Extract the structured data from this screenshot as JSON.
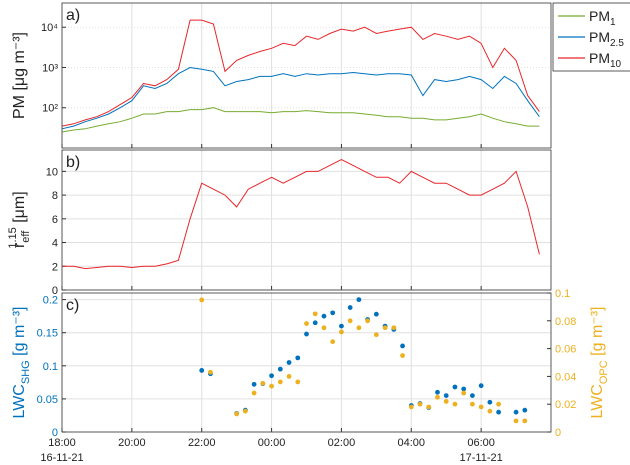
{
  "chart_data": [
    {
      "type": "line",
      "panel_label": "a)",
      "log_scale": true,
      "ylabel": {
        "base": "PM [μg m⁻³]"
      },
      "xlim": [
        "16-11-21 18:00",
        "17-11-21 08:00"
      ],
      "xticks": [
        "16-11-21 18:00",
        "16-11-21 20:00",
        "16-11-21 22:00",
        "17-11-21 00:00",
        "17-11-21 02:00",
        "17-11-21 04:00",
        "17-11-21 06:00"
      ],
      "ylim": [
        10,
        40000
      ],
      "yticks": [
        {
          "value": 100,
          "label": "10²"
        },
        {
          "value": 1000,
          "label": "10³"
        },
        {
          "value": 10000,
          "label": "10⁴"
        }
      ],
      "grid": true,
      "legend": "outside-top-right",
      "x": [
        "16-11-21 18:00",
        "16-11-21 18:20",
        "16-11-21 18:40",
        "16-11-21 19:00",
        "16-11-21 19:20",
        "16-11-21 19:40",
        "16-11-21 20:00",
        "16-11-21 20:20",
        "16-11-21 20:40",
        "16-11-21 21:00",
        "16-11-21 21:20",
        "16-11-21 21:40",
        "16-11-21 22:00",
        "16-11-21 22:20",
        "16-11-21 22:40",
        "16-11-21 23:00",
        "16-11-21 23:20",
        "16-11-21 23:40",
        "17-11-21 00:00",
        "17-11-21 00:20",
        "17-11-21 00:40",
        "17-11-21 01:00",
        "17-11-21 01:20",
        "17-11-21 01:40",
        "17-11-21 02:00",
        "17-11-21 02:20",
        "17-11-21 02:40",
        "17-11-21 03:00",
        "17-11-21 03:20",
        "17-11-21 03:40",
        "17-11-21 04:00",
        "17-11-21 04:20",
        "17-11-21 04:40",
        "17-11-21 05:00",
        "17-11-21 05:20",
        "17-11-21 05:40",
        "17-11-21 06:00",
        "17-11-21 06:20",
        "17-11-21 06:40",
        "17-11-21 07:00",
        "17-11-21 07:20",
        "17-11-21 07:40"
      ],
      "series": [
        {
          "name": "PM",
          "subscript": "1",
          "color": "#77ac30",
          "values": [
            25,
            28,
            30,
            35,
            40,
            45,
            55,
            70,
            70,
            80,
            80,
            90,
            90,
            100,
            80,
            80,
            80,
            80,
            75,
            80,
            80,
            85,
            80,
            75,
            75,
            75,
            70,
            65,
            60,
            60,
            55,
            55,
            50,
            50,
            55,
            60,
            70,
            55,
            45,
            40,
            35,
            35
          ]
        },
        {
          "name": "PM",
          "subscript": "2.5",
          "color": "#0072bd",
          "values": [
            30,
            35,
            45,
            55,
            70,
            100,
            150,
            350,
            300,
            400,
            700,
            1000,
            900,
            800,
            350,
            450,
            500,
            600,
            600,
            700,
            600,
            700,
            650,
            700,
            700,
            750,
            700,
            650,
            700,
            700,
            650,
            200,
            500,
            450,
            500,
            600,
            500,
            300,
            600,
            400,
            150,
            60
          ]
        },
        {
          "name": "PM",
          "subscript": "10",
          "color": "#e8262a",
          "values": [
            35,
            40,
            50,
            60,
            80,
            120,
            180,
            400,
            350,
            500,
            900,
            15000,
            15000,
            12000,
            800,
            1500,
            2000,
            2500,
            3000,
            4000,
            3500,
            6000,
            5000,
            7000,
            9000,
            8000,
            10000,
            7000,
            8000,
            9000,
            10000,
            5000,
            7000,
            6000,
            5000,
            6000,
            4000,
            1000,
            3000,
            1500,
            200,
            80
          ]
        }
      ]
    },
    {
      "type": "line",
      "panel_label": "b)",
      "log_scale": false,
      "ylabel": {
        "base": "r",
        "sub": "eff",
        "sup": "1.15",
        "unit": " [μm]"
      },
      "xlim": [
        "16-11-21 18:00",
        "17-11-21 08:00"
      ],
      "xticks": [
        "16-11-21 18:00",
        "16-11-21 20:00",
        "16-11-21 22:00",
        "17-11-21 00:00",
        "17-11-21 02:00",
        "17-11-21 04:00",
        "17-11-21 06:00"
      ],
      "ylim": [
        0,
        11.8
      ],
      "yticks": [
        0,
        2,
        4,
        6,
        8,
        10
      ],
      "grid": true,
      "x": [
        "16-11-21 18:00",
        "16-11-21 18:20",
        "16-11-21 18:40",
        "16-11-21 19:00",
        "16-11-21 19:20",
        "16-11-21 19:40",
        "16-11-21 20:00",
        "16-11-21 20:20",
        "16-11-21 20:40",
        "16-11-21 21:00",
        "16-11-21 21:20",
        "16-11-21 21:40",
        "16-11-21 22:00",
        "16-11-21 22:20",
        "16-11-21 22:40",
        "16-11-21 23:00",
        "16-11-21 23:20",
        "16-11-21 23:40",
        "17-11-21 00:00",
        "17-11-21 00:20",
        "17-11-21 00:40",
        "17-11-21 01:00",
        "17-11-21 01:20",
        "17-11-21 01:40",
        "17-11-21 02:00",
        "17-11-21 02:20",
        "17-11-21 02:40",
        "17-11-21 03:00",
        "17-11-21 03:20",
        "17-11-21 03:40",
        "17-11-21 04:00",
        "17-11-21 04:20",
        "17-11-21 04:40",
        "17-11-21 05:00",
        "17-11-21 05:20",
        "17-11-21 05:40",
        "17-11-21 06:00",
        "17-11-21 06:20",
        "17-11-21 06:40",
        "17-11-21 07:00",
        "17-11-21 07:20",
        "17-11-21 07:40"
      ],
      "series": [
        {
          "color": "#e8262a",
          "values": [
            2,
            2,
            1.8,
            1.9,
            2,
            2,
            1.9,
            2,
            2,
            2.2,
            2.5,
            6,
            9,
            8.5,
            8,
            7,
            8.5,
            9,
            9.5,
            9,
            9.5,
            10,
            10,
            10.5,
            11,
            10.5,
            10,
            9.5,
            9.5,
            9,
            10,
            9.5,
            9,
            9,
            8.5,
            8,
            8,
            8.5,
            9,
            10,
            7,
            3
          ]
        }
      ]
    },
    {
      "type": "scatter",
      "panel_label": "c)",
      "log_scale": false,
      "ylabel": {
        "base": "LWC",
        "sub": "SHG",
        "unit": " [g m⁻³]"
      },
      "y2label": {
        "base": "LWC",
        "sub": "OPC",
        "unit": " [g m⁻³]"
      },
      "xlim": [
        "16-11-21 18:00",
        "17-11-21 08:00"
      ],
      "xticks": [
        {
          "value": "16-11-21 18:00",
          "label": "18:00"
        },
        {
          "value": "16-11-21 20:00",
          "label": "20:00"
        },
        {
          "value": "16-11-21 22:00",
          "label": "22:00"
        },
        {
          "value": "17-11-21 00:00",
          "label": "00:00"
        },
        {
          "value": "17-11-21 02:00",
          "label": "02:00"
        },
        {
          "value": "17-11-21 04:00",
          "label": "04:00"
        },
        {
          "value": "17-11-21 06:00",
          "label": "06:00"
        }
      ],
      "xdate_labels": [
        {
          "value": "16-11-21 18:00",
          "label": "16-11-21"
        },
        {
          "value": "17-11-21 06:00",
          "label": "17-11-21"
        }
      ],
      "ylim": [
        0,
        0.21
      ],
      "yticks": [
        0,
        0.05,
        0.1,
        0.15,
        0.2
      ],
      "y2lim": [
        0,
        0.1
      ],
      "y2ticks": [
        0,
        0.02,
        0.04,
        0.06,
        0.08,
        0.1
      ],
      "grid": true,
      "x": [
        "16-11-21 22:00",
        "16-11-21 22:15",
        "16-11-21 23:00",
        "16-11-21 23:15",
        "16-11-21 23:30",
        "16-11-21 23:45",
        "17-11-21 00:00",
        "17-11-21 00:15",
        "17-11-21 00:30",
        "17-11-21 00:45",
        "17-11-21 01:00",
        "17-11-21 01:15",
        "17-11-21 01:30",
        "17-11-21 01:45",
        "17-11-21 02:00",
        "17-11-21 02:15",
        "17-11-21 02:30",
        "17-11-21 02:45",
        "17-11-21 03:00",
        "17-11-21 03:15",
        "17-11-21 03:30",
        "17-11-21 03:45",
        "17-11-21 04:00",
        "17-11-21 04:15",
        "17-11-21 04:30",
        "17-11-21 04:45",
        "17-11-21 05:00",
        "17-11-21 05:15",
        "17-11-21 05:30",
        "17-11-21 05:45",
        "17-11-21 06:00",
        "17-11-21 06:15",
        "17-11-21 06:30",
        "17-11-21 07:00",
        "17-11-21 07:15"
      ],
      "series": [
        {
          "color": "#0072bd",
          "values": [
            0.093,
            0.088,
            0.028,
            0.033,
            0.072,
            0.073,
            0.085,
            0.095,
            0.105,
            0.112,
            0.148,
            0.165,
            0.175,
            0.18,
            0.16,
            0.188,
            0.2,
            0.17,
            0.178,
            0.16,
            0.155,
            0.13,
            0.04,
            0.043,
            0.037,
            0.06,
            0.055,
            0.068,
            0.065,
            0.055,
            0.07,
            0.045,
            0.03,
            0.03,
            0.033
          ]
        },
        {
          "color": "#edb120",
          "axis": "y2",
          "values": [
            0.095,
            0.043,
            0.013,
            0.015,
            0.028,
            0.035,
            0.033,
            0.036,
            0.04,
            0.036,
            0.078,
            0.085,
            0.075,
            0.065,
            0.072,
            0.08,
            0.075,
            0.08,
            0.07,
            0.075,
            0.075,
            0.055,
            0.018,
            0.02,
            0.018,
            0.025,
            0.022,
            0.02,
            0.028,
            0.02,
            0.018,
            0.015,
            0.02,
            0.008,
            0.008
          ]
        }
      ]
    }
  ]
}
